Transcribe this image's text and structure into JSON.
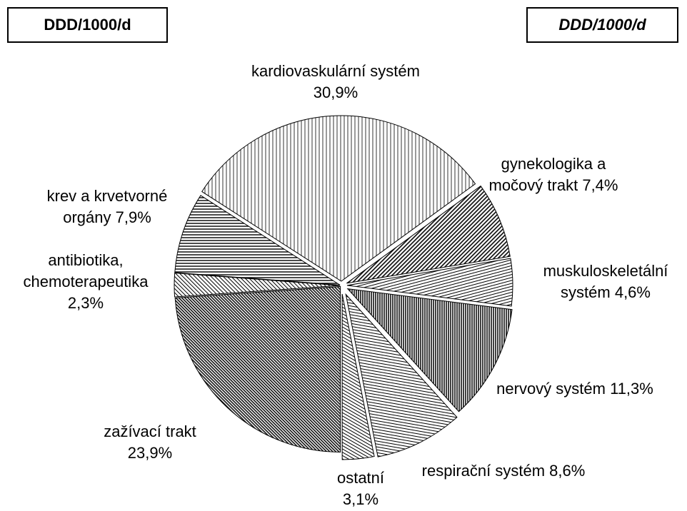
{
  "headers": [
    "DDD/1000/d",
    "DDD/1000/d"
  ],
  "chart_data": {
    "type": "pie",
    "categories": [
      "kardiovaskulární systém",
      "gynekologika a močový trakt",
      "muskuloskeletální systém",
      "nervový systém",
      "respirační systém",
      "ostatní",
      "zažívací trakt",
      "antibiotika, chemoterapeutika",
      "krev a krvetvorné orgány"
    ],
    "values": [
      30.9,
      7.4,
      4.6,
      11.3,
      8.6,
      3.1,
      23.9,
      2.3,
      7.9
    ],
    "value_labels": [
      "30,9%",
      "7,4%",
      "4,6%",
      "11,3%",
      "8,6%",
      "3,1%",
      "23,9%",
      "2,3%",
      "7,9%"
    ]
  }
}
